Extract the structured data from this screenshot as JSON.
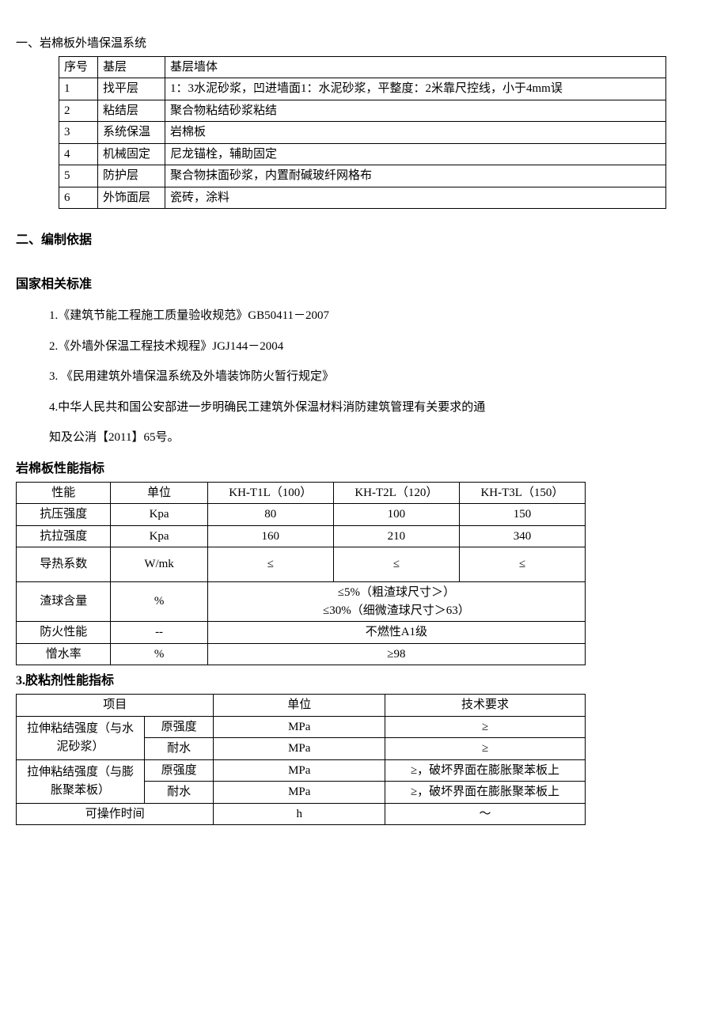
{
  "section1": {
    "title": "一、岩棉板外墙保温系统",
    "table": {
      "header": [
        "序号",
        "基层",
        "基层墙体"
      ],
      "rows": [
        [
          "1",
          "找平层",
          "1：3水泥砂浆，凹进墙面1：水泥砂浆，平整度：2米靠尺控线，小于4mm误"
        ],
        [
          "2",
          "粘结层",
          "聚合物粘结砂浆粘结"
        ],
        [
          "3",
          "系统保温",
          "岩棉板"
        ],
        [
          "4",
          "机械固定",
          "尼龙锚栓，辅助固定"
        ],
        [
          "5",
          "防护层",
          "聚合物抹面砂浆，内置耐碱玻纤网格布"
        ],
        [
          "6",
          "外饰面层",
          "瓷砖，涂料"
        ]
      ]
    }
  },
  "section2": {
    "title": "二、编制依据",
    "sub1": "国家相关标准",
    "items": [
      "1.《建筑节能工程施工质量验收规范》GB50411－2007",
      "2.《外墙外保温工程技术规程》JGJ144－2004",
      "3. 《民用建筑外墙保温系统及外墙装饰防火暂行规定》",
      "4.中华人民共和国公安部进一步明确民工建筑外保温材料消防建筑管理有关要求的通",
      "知及公消【2011】65号。"
    ]
  },
  "perf": {
    "title": "岩棉板性能指标",
    "header": [
      "性能",
      "单位",
      "KH-T1L（100）",
      "KH-T2L（120）",
      "KH-T3L（150）"
    ],
    "rows": [
      {
        "name": "抗压强度",
        "unit": "Kpa",
        "v": [
          "80",
          "100",
          "150"
        ]
      },
      {
        "name": "抗拉强度",
        "unit": "Kpa",
        "v": [
          "160",
          "210",
          "340"
        ]
      },
      {
        "name": "导热系数",
        "unit": "W/mk",
        "v": [
          "≤",
          "≤",
          "≤"
        ]
      }
    ],
    "slag": {
      "name": "渣球含量",
      "unit": "%",
      "line1": "≤5%（粗渣球尺寸＞）",
      "line2": "≤30%（细微渣球尺寸＞63）"
    },
    "fire": {
      "name": "防火性能",
      "unit": "--",
      "val": "不燃性A1级"
    },
    "water": {
      "name": "憎水率",
      "unit": "%",
      "val": "≥98"
    }
  },
  "glue": {
    "title": "3.胶粘剂性能指标",
    "header": [
      "项目",
      "单位",
      "技术要求"
    ],
    "r1": {
      "group": "拉伸粘结强度（与水泥砂浆）",
      "sub_a": "原强度",
      "sub_b": "耐水",
      "unit": "MPa",
      "req": "≥"
    },
    "r2": {
      "group": "拉伸粘结强度（与膨胀聚苯板）",
      "sub_a": "原强度",
      "sub_b": "耐水",
      "unit": "MPa",
      "req": "≥，破坏界面在膨胀聚苯板上"
    },
    "r3": {
      "name": "可操作时间",
      "unit": "h",
      "req": "～"
    }
  }
}
